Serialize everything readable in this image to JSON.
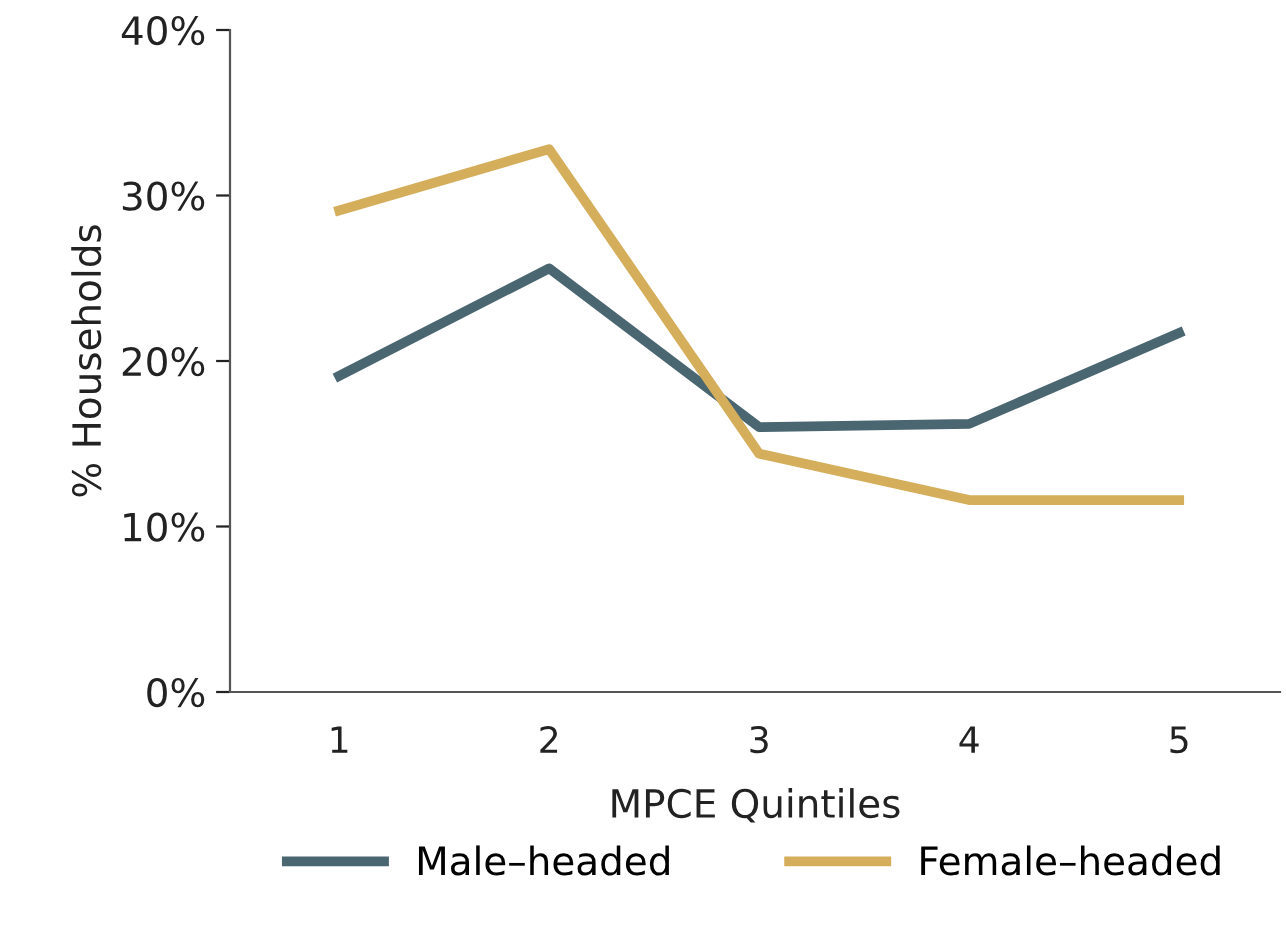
{
  "chart_data": {
    "type": "line",
    "xlabel": "MPCE Quintiles",
    "ylabel": "% Households",
    "categories": [
      "1",
      "2",
      "3",
      "4",
      "5"
    ],
    "series": [
      {
        "name": "Male–headed",
        "color": "#4a6670",
        "values": [
          19.1,
          25.6,
          16.0,
          16.2,
          21.7
        ]
      },
      {
        "name": "Female–headed",
        "color": "#d4ae5a",
        "values": [
          29.1,
          32.8,
          14.4,
          11.6,
          11.6
        ]
      }
    ],
    "ylim": [
      0,
      40
    ],
    "yticks": [
      {
        "value": 0,
        "label": "0%"
      },
      {
        "value": 10,
        "label": "10%"
      },
      {
        "value": 20,
        "label": "20%"
      },
      {
        "value": 30,
        "label": "30%"
      },
      {
        "value": 40,
        "label": "40%"
      }
    ],
    "grid": false,
    "legend": "bottom",
    "marker": "none",
    "line_style": "solid"
  }
}
